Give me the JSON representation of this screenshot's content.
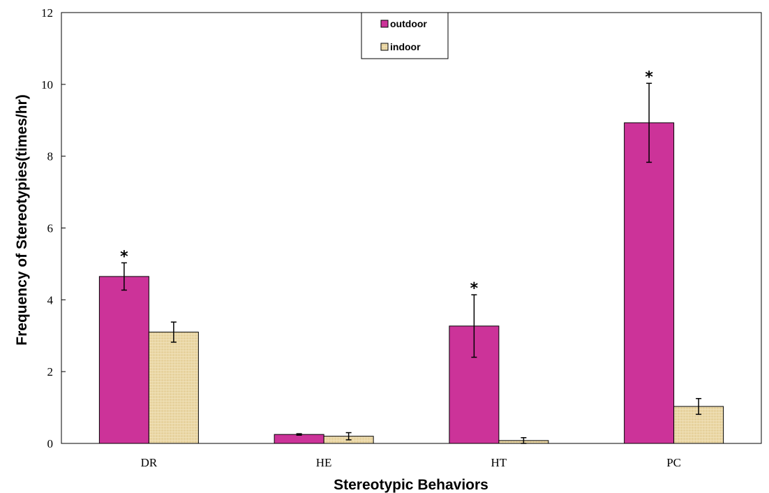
{
  "chart_data": {
    "type": "bar",
    "categories": [
      "DR",
      "HE",
      "HT",
      "PC"
    ],
    "series": [
      {
        "name": "outdoor",
        "color": "#cc3399",
        "values": [
          4.65,
          0.25,
          3.27,
          8.93
        ],
        "errors": [
          0.38,
          0.02,
          0.87,
          1.1
        ],
        "significance": [
          "*",
          "",
          "*",
          "*"
        ]
      },
      {
        "name": "indoor",
        "color": "#ead7a6",
        "values": [
          3.1,
          0.2,
          0.08,
          1.03
        ],
        "errors": [
          0.28,
          0.1,
          0.08,
          0.22
        ],
        "significance": [
          "",
          "",
          "",
          ""
        ]
      }
    ],
    "xlabel": "Stereotypic Behaviors",
    "ylabel": "Frequency of Stereotypies(times/hr)",
    "ylim": [
      0,
      12
    ],
    "yticks": [
      "0",
      "2",
      "4",
      "6",
      "8",
      "10",
      "12"
    ],
    "grid": false,
    "legend_position": "top-center"
  }
}
